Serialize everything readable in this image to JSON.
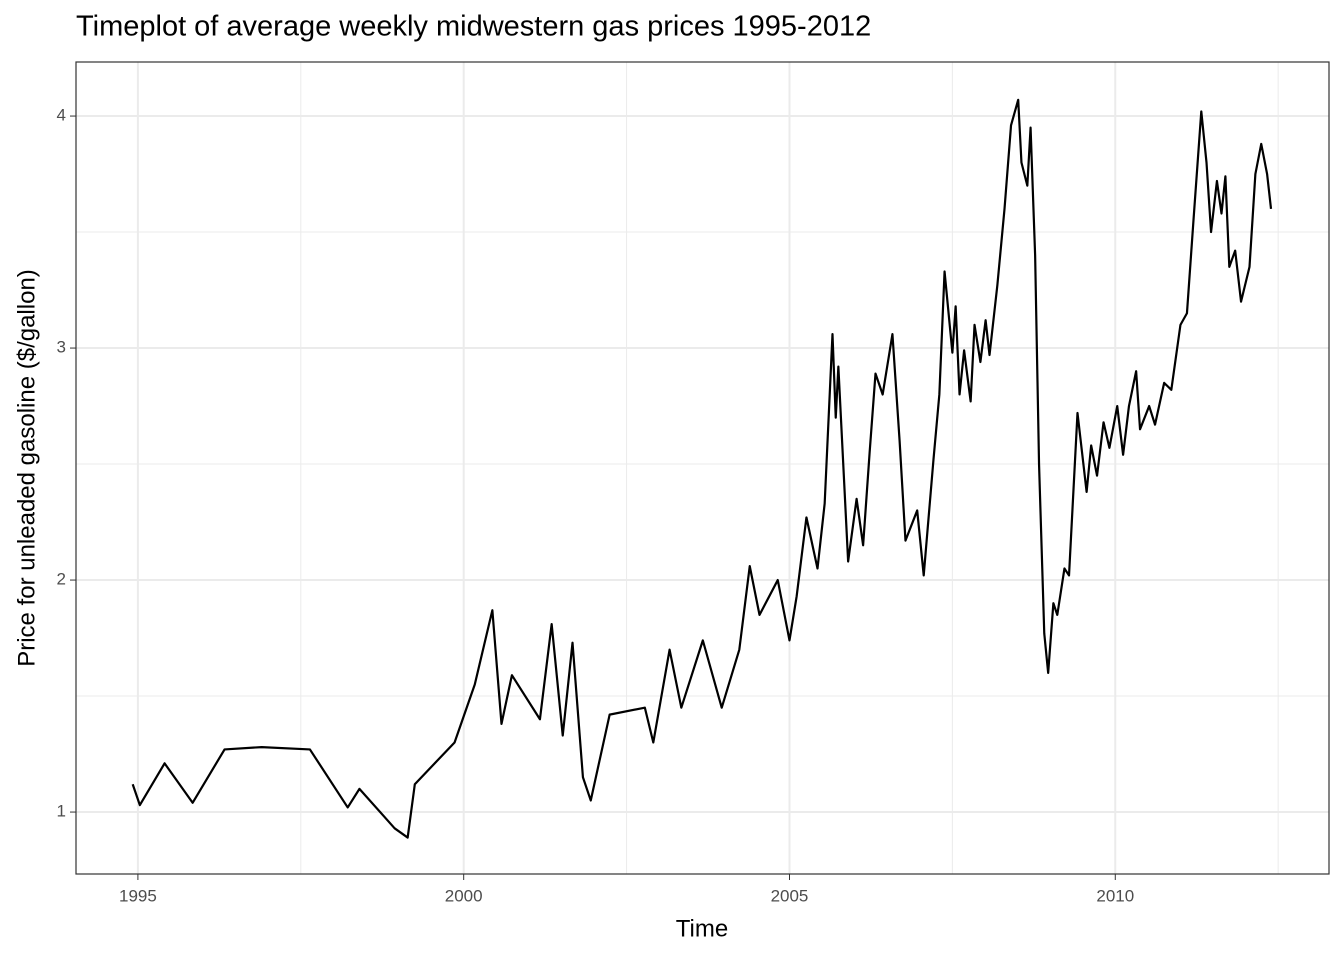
{
  "chart_data": {
    "type": "line",
    "title": "Timeplot of average weekly midwestern gas prices 1995-2012",
    "x_label": "Time",
    "y_label": "Price for unleaded gasoline ($/gallon)",
    "xlim": [
      1994.05,
      2013.28
    ],
    "ylim": [
      0.733,
      4.233
    ],
    "xticks": [
      1995,
      2000,
      2005,
      2010
    ],
    "yticks": [
      1,
      2,
      3,
      4
    ],
    "x_minor_grid": [
      1997.5,
      2002.5,
      2007.5,
      2012.5
    ],
    "y_minor_grid": [
      1.5,
      2.5,
      3.5
    ],
    "grid": true,
    "x": [
      1994.92,
      1995.03,
      1995.41,
      1995.84,
      1996.33,
      1996.9,
      1997.64,
      1998.22,
      1998.4,
      1998.94,
      1999.14,
      1999.25,
      1999.86,
      2000.17,
      2000.44,
      2000.58,
      2000.74,
      2001.17,
      2001.35,
      2001.52,
      2001.67,
      2001.83,
      2001.95,
      2002.24,
      2002.78,
      2002.91,
      2003.16,
      2003.34,
      2003.67,
      2003.96,
      2004.23,
      2004.39,
      2004.54,
      2004.82,
      2005.0,
      2005.11,
      2005.26,
      2005.43,
      2005.54,
      2005.66,
      2005.71,
      2005.75,
      2005.9,
      2006.03,
      2006.13,
      2006.23,
      2006.32,
      2006.43,
      2006.58,
      2006.69,
      2006.78,
      2006.96,
      2007.06,
      2007.21,
      2007.3,
      2007.38,
      2007.5,
      2007.55,
      2007.61,
      2007.68,
      2007.78,
      2007.84,
      2007.93,
      2008.01,
      2008.07,
      2008.19,
      2008.3,
      2008.4,
      2008.51,
      2008.56,
      2008.65,
      2008.7,
      2008.77,
      2008.83,
      2008.91,
      2008.97,
      2009.05,
      2009.11,
      2009.22,
      2009.29,
      2009.42,
      2009.56,
      2009.63,
      2009.72,
      2009.82,
      2009.91,
      2010.03,
      2010.12,
      2010.21,
      2010.32,
      2010.38,
      2010.52,
      2010.61,
      2010.75,
      2010.86,
      2011.0,
      2011.1,
      2011.2,
      2011.32,
      2011.4,
      2011.47,
      2011.56,
      2011.63,
      2011.69,
      2011.75,
      2011.84,
      2011.93,
      2012.06,
      2012.15,
      2012.24,
      2012.33,
      2012.39
    ],
    "series": [
      {
        "color": "#000000",
        "values": [
          1.12,
          1.03,
          1.21,
          1.04,
          1.27,
          1.28,
          1.27,
          1.02,
          1.1,
          0.93,
          0.89,
          1.12,
          1.3,
          1.55,
          1.87,
          1.38,
          1.59,
          1.4,
          1.81,
          1.33,
          1.73,
          1.15,
          1.05,
          1.42,
          1.45,
          1.3,
          1.7,
          1.45,
          1.74,
          1.45,
          1.7,
          2.06,
          1.85,
          2.0,
          1.74,
          1.93,
          2.27,
          2.05,
          2.33,
          3.06,
          2.7,
          2.92,
          2.08,
          2.35,
          2.15,
          2.55,
          2.89,
          2.8,
          3.06,
          2.6,
          2.17,
          2.3,
          2.02,
          2.52,
          2.8,
          3.33,
          2.98,
          3.18,
          2.8,
          2.99,
          2.77,
          3.1,
          2.94,
          3.12,
          2.97,
          3.27,
          3.6,
          3.96,
          4.07,
          3.8,
          3.7,
          3.95,
          3.4,
          2.5,
          1.77,
          1.6,
          1.9,
          1.85,
          2.05,
          2.02,
          2.72,
          2.38,
          2.58,
          2.45,
          2.68,
          2.57,
          2.75,
          2.54,
          2.75,
          2.9,
          2.65,
          2.75,
          2.67,
          2.85,
          2.82,
          3.1,
          3.15,
          3.55,
          4.02,
          3.8,
          3.5,
          3.72,
          3.58,
          3.74,
          3.35,
          3.42,
          3.2,
          3.35,
          3.75,
          3.88,
          3.75,
          3.6
        ]
      }
    ]
  }
}
